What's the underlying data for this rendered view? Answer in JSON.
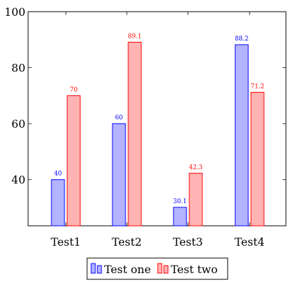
{
  "chart_data": {
    "type": "bar",
    "categories": [
      "Test1",
      "Test2",
      "Test3",
      "Test4"
    ],
    "series": [
      {
        "name": "Test one",
        "values": [
          40,
          60,
          30.1,
          88.2
        ],
        "labels": [
          "40",
          "60",
          "30.1",
          "88.2"
        ],
        "fill": "#b3b3ff",
        "stroke": "#0000ff"
      },
      {
        "name": "Test two",
        "values": [
          70,
          89.1,
          42.3,
          71.2
        ],
        "labels": [
          "70",
          "89.1",
          "42.3",
          "71.2"
        ],
        "fill": "#ffb3b3",
        "stroke": "#ff0000"
      }
    ],
    "ylim": [
      23.5,
      100
    ],
    "yticks": [
      40,
      60,
      80,
      100
    ],
    "ytick_labels": [
      "40",
      "60",
      "80",
      "100"
    ],
    "grid": false,
    "legend_position": "bottom-center",
    "title": "",
    "xlabel": "",
    "ylabel": ""
  }
}
